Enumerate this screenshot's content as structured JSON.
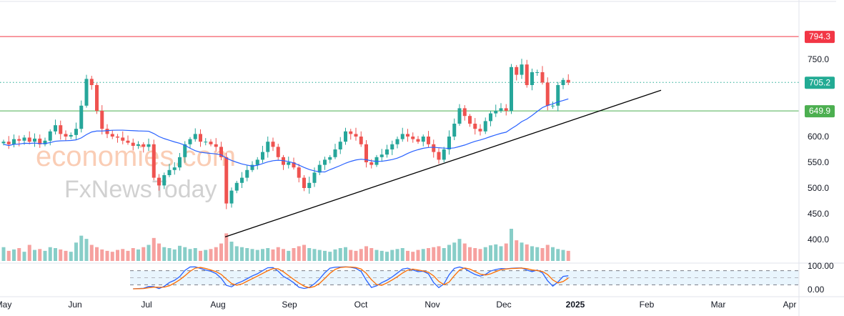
{
  "watermark": {
    "line1": "economies.com",
    "line2": "FxNewsToday"
  },
  "colors": {
    "up": "#26a69a",
    "down": "#ef5350",
    "ma": "#2962ff",
    "resistance": "#f23645",
    "support": "#4caf50",
    "last": "#22ab94",
    "stochK": "#2962ff",
    "stochD": "#ff6d00"
  },
  "chart_data": {
    "type": "candlestick",
    "price_axis": {
      "ticks": [
        "750.0",
        "600.0",
        "550.0",
        "500.0",
        "450.0",
        "400.0"
      ],
      "tick_values": [
        750,
        600,
        550,
        500,
        450,
        400
      ],
      "range": [
        395,
        800
      ]
    },
    "x_axis": {
      "ticks": [
        "May",
        "Jun",
        "Jul",
        "Aug",
        "Sep",
        "Oct",
        "Nov",
        "Dec",
        "2025",
        "Feb",
        "Mar",
        "Apr"
      ]
    },
    "levels": [
      {
        "label": "794.3",
        "value": 794.3,
        "style": "solid",
        "color": "#f23645"
      },
      {
        "label": "705.2",
        "value": 705.2,
        "style": "dotted",
        "color": "#22ab94"
      },
      {
        "label": "649.9",
        "value": 649.9,
        "style": "solid",
        "color": "#4caf50"
      }
    ],
    "trendline": {
      "from": {
        "month_index": 3.1,
        "value": 405
      },
      "to": {
        "month_index": 9.2,
        "value": 690
      }
    },
    "closes": [
      590,
      585,
      595,
      592,
      598,
      590,
      596,
      585,
      592,
      610,
      622,
      605,
      600,
      603,
      615,
      660,
      712,
      700,
      650,
      615,
      605,
      600,
      598,
      592,
      588,
      582,
      585,
      580,
      585,
      520,
      505,
      525,
      535,
      540,
      560,
      585,
      595,
      605,
      590,
      590,
      585,
      580,
      560,
      470,
      495,
      510,
      520,
      535,
      545,
      555,
      570,
      590,
      580,
      560,
      545,
      550,
      540,
      520,
      500,
      510,
      530,
      545,
      555,
      560,
      575,
      590,
      610,
      605,
      600,
      585,
      550,
      545,
      560,
      565,
      575,
      585,
      595,
      605,
      600,
      595,
      590,
      600,
      585,
      570,
      555,
      575,
      600,
      625,
      655,
      640,
      625,
      615,
      610,
      630,
      645,
      650,
      655,
      650,
      735,
      720,
      740,
      700,
      725,
      725,
      705,
      660,
      660,
      700,
      710,
      705
    ],
    "volumes": [
      30,
      22,
      25,
      28,
      20,
      35,
      24,
      26,
      22,
      30,
      28,
      25,
      22,
      20,
      40,
      55,
      48,
      35,
      30,
      25,
      22,
      20,
      24,
      26,
      22,
      28,
      25,
      30,
      35,
      50,
      38,
      30,
      28,
      25,
      33,
      30,
      26,
      28,
      22,
      24,
      26,
      30,
      38,
      60,
      42,
      32,
      30,
      28,
      26,
      24,
      26,
      28,
      25,
      30,
      26,
      22,
      28,
      32,
      35,
      28,
      26,
      24,
      22,
      20,
      25,
      28,
      30,
      24,
      22,
      26,
      32,
      28,
      24,
      22,
      20,
      24,
      26,
      28,
      22,
      20,
      24,
      26,
      28,
      30,
      32,
      28,
      35,
      40,
      48,
      38,
      30,
      28,
      26,
      30,
      34,
      36,
      32,
      38,
      70,
      45,
      40,
      36,
      32,
      30,
      28,
      35,
      30,
      26,
      24,
      22
    ],
    "indicator": {
      "name": "Stochastic",
      "ticks": [
        "100.00",
        "0.00"
      ],
      "bands": [
        80,
        20
      ],
      "range": [
        0,
        100
      ]
    },
    "last_price": "705.2"
  }
}
